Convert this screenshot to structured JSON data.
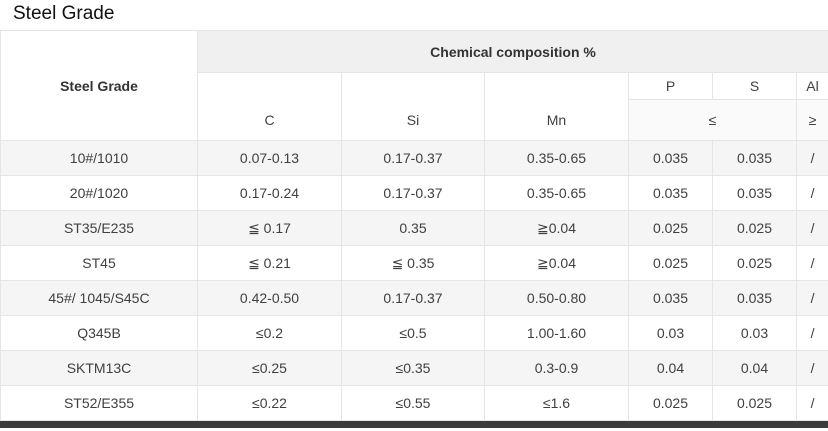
{
  "page": {
    "title": "Steel Grade"
  },
  "table": {
    "header": {
      "steel_grade_label": "Steel Grade",
      "chemical_composition_label": "Chemical composition %",
      "element_c": "C",
      "element_si": "Si",
      "element_mn": "Mn",
      "element_p": "P",
      "element_s": "S",
      "element_al": "Al",
      "max_symbol": "≤",
      "min_symbol": "≥"
    },
    "rows": [
      {
        "grade": "10#/1010",
        "c": "0.07-0.13",
        "si": "0.17-0.37",
        "mn": "0.35-0.65",
        "p": "0.035",
        "s": "0.035",
        "al": "/"
      },
      {
        "grade": "20#/1020",
        "c": "0.17-0.24",
        "si": "0.17-0.37",
        "mn": "0.35-0.65",
        "p": "0.035",
        "s": "0.035",
        "al": "/"
      },
      {
        "grade": "ST35/E235",
        "c": "≦ 0.17",
        "si": "0.35",
        "mn": "≧0.04",
        "p": "0.025",
        "s": "0.025",
        "al": "/"
      },
      {
        "grade": "ST45",
        "c": "≦ 0.21",
        "si": "≦ 0.35",
        "mn": "≧0.04",
        "p": "0.025",
        "s": "0.025",
        "al": "/"
      },
      {
        "grade": "45#/ 1045/S45C",
        "c": "0.42-0.50",
        "si": "0.17-0.37",
        "mn": "0.50-0.80",
        "p": "0.035",
        "s": "0.035",
        "al": "/"
      },
      {
        "grade": "Q345B",
        "c": "≤0.2",
        "si": "≤0.5",
        "mn": "1.00-1.60",
        "p": "0.03",
        "s": "0.03",
        "al": "/"
      },
      {
        "grade": "SKTM13C",
        "c": "≤0.25",
        "si": "≤0.35",
        "mn": "0.3-0.9",
        "p": "0.04",
        "s": "0.04",
        "al": "/"
      },
      {
        "grade": "ST52/E355",
        "c": "≤0.22",
        "si": "≤0.55",
        "mn": "≤1.6",
        "p": "0.025",
        "s": "0.025",
        "al": "/"
      }
    ]
  },
  "colors": {
    "header_bg": "#f0f0f0",
    "subheader_bg": "#fafafa",
    "row_alt_bg": "#f5f5f5",
    "border": "#e5e5e5",
    "bottom_bar": "#3b3b3b"
  }
}
